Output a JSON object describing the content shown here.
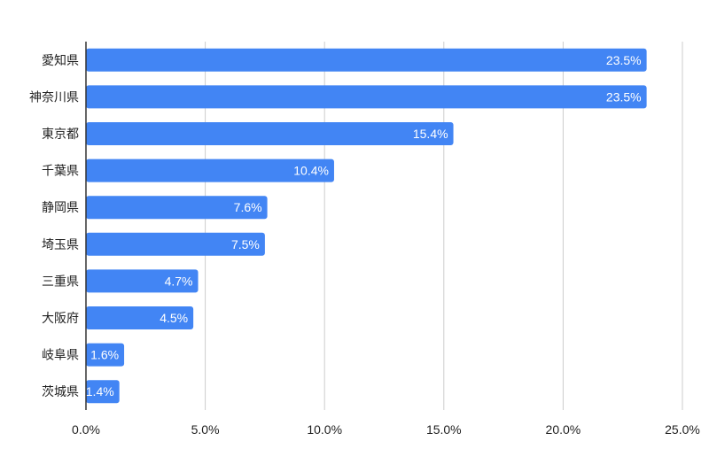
{
  "chart_data": {
    "type": "bar",
    "orientation": "horizontal",
    "categories": [
      "愛知県",
      "神奈川県",
      "東京都",
      "千葉県",
      "静岡県",
      "埼玉県",
      "三重県",
      "大阪府",
      "岐阜県",
      "茨城県"
    ],
    "values": [
      23.5,
      23.5,
      15.4,
      10.4,
      7.6,
      7.5,
      4.7,
      4.5,
      1.6,
      1.4
    ],
    "data_labels": [
      "23.5%",
      "23.5%",
      "15.4%",
      "10.4%",
      "7.6%",
      "7.5%",
      "4.7%",
      "4.5%",
      "1.6%",
      "1.4%"
    ],
    "xlim": [
      0,
      25
    ],
    "xticks": [
      0,
      5,
      10,
      15,
      20,
      25
    ],
    "xtick_labels": [
      "0.0%",
      "5.0%",
      "10.0%",
      "15.0%",
      "20.0%",
      "25.0%"
    ],
    "grid": true,
    "legend": "none",
    "title": "",
    "xlabel": "",
    "ylabel": "",
    "colors": {
      "bar": "#4285f4",
      "grid": "#cccccc",
      "axis": "#333333"
    }
  }
}
